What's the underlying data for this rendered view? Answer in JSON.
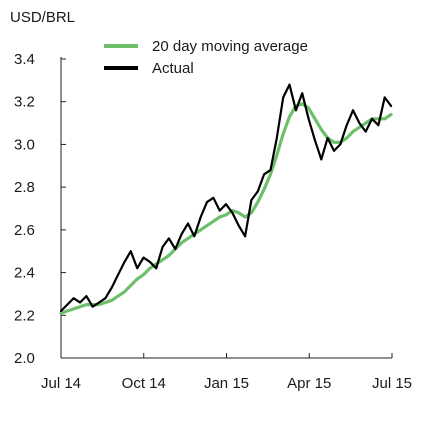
{
  "chart_data": {
    "type": "line",
    "title": "",
    "unit_label": "USD/BRL",
    "xlabel": "",
    "ylabel": "",
    "x_tick_labels": [
      "Jul 14",
      "Oct 14",
      "Jan 15",
      "Apr 15",
      "Jul 15"
    ],
    "y_ticks": [
      "2.0",
      "2.2",
      "2.4",
      "2.6",
      "2.8",
      "3.0",
      "3.2",
      "3.4"
    ],
    "ylim": [
      2.0,
      3.4
    ],
    "grid": false,
    "legend_position": "top-left",
    "x": [
      "2014-07-01",
      "2014-07-08",
      "2014-07-15",
      "2014-07-22",
      "2014-07-29",
      "2014-08-05",
      "2014-08-12",
      "2014-08-19",
      "2014-08-26",
      "2014-09-02",
      "2014-09-09",
      "2014-09-16",
      "2014-09-23",
      "2014-09-30",
      "2014-10-07",
      "2014-10-14",
      "2014-10-21",
      "2014-10-28",
      "2014-11-04",
      "2014-11-11",
      "2014-11-18",
      "2014-11-25",
      "2014-12-02",
      "2014-12-09",
      "2014-12-16",
      "2014-12-23",
      "2014-12-30",
      "2015-01-06",
      "2015-01-13",
      "2015-01-20",
      "2015-01-27",
      "2015-02-03",
      "2015-02-10",
      "2015-02-17",
      "2015-02-24",
      "2015-03-03",
      "2015-03-10",
      "2015-03-17",
      "2015-03-24",
      "2015-03-31",
      "2015-04-07",
      "2015-04-14",
      "2015-04-21",
      "2015-04-28",
      "2015-05-05",
      "2015-05-12",
      "2015-05-19",
      "2015-05-26",
      "2015-06-02",
      "2015-06-09",
      "2015-06-16",
      "2015-06-23",
      "2015-06-30"
    ],
    "series": [
      {
        "name": "20 day moving average",
        "color": "#6dbf6a",
        "values": [
          2.21,
          2.22,
          2.23,
          2.24,
          2.25,
          2.25,
          2.25,
          2.26,
          2.27,
          2.29,
          2.31,
          2.34,
          2.37,
          2.39,
          2.42,
          2.44,
          2.46,
          2.48,
          2.51,
          2.54,
          2.56,
          2.58,
          2.6,
          2.62,
          2.64,
          2.66,
          2.67,
          2.69,
          2.68,
          2.66,
          2.68,
          2.73,
          2.79,
          2.86,
          2.95,
          3.05,
          3.13,
          3.18,
          3.19,
          3.17,
          3.12,
          3.07,
          3.03,
          3.01,
          3.01,
          3.03,
          3.06,
          3.08,
          3.1,
          3.12,
          3.12,
          3.12,
          3.14
        ]
      },
      {
        "name": "Actual",
        "color": "#000000",
        "values": [
          2.22,
          2.25,
          2.28,
          2.26,
          2.29,
          2.24,
          2.26,
          2.28,
          2.33,
          2.39,
          2.45,
          2.5,
          2.42,
          2.47,
          2.45,
          2.42,
          2.52,
          2.56,
          2.51,
          2.58,
          2.63,
          2.57,
          2.66,
          2.73,
          2.75,
          2.69,
          2.72,
          2.68,
          2.62,
          2.57,
          2.74,
          2.78,
          2.86,
          2.88,
          3.03,
          3.22,
          3.28,
          3.16,
          3.24,
          3.12,
          3.02,
          2.93,
          3.03,
          2.97,
          3.0,
          3.09,
          3.16,
          3.1,
          3.06,
          3.12,
          3.09,
          3.22,
          3.18
        ]
      }
    ]
  }
}
